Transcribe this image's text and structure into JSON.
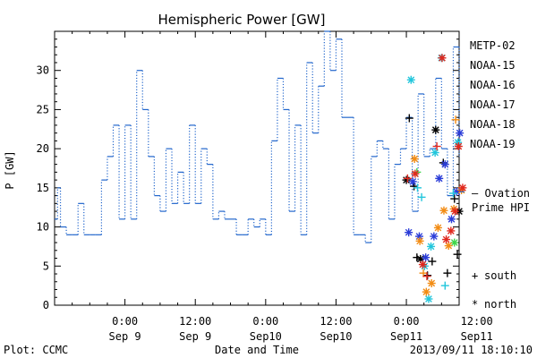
{
  "chart_data": {
    "type": "line",
    "title": "Hemispheric Power [GW]",
    "ylabel": "P [GW]",
    "xlabel": "Date and Time",
    "xlim": [
      -6,
      63
    ],
    "ylim": [
      0,
      35
    ],
    "yticks": [
      0,
      5,
      10,
      15,
      20,
      25,
      30
    ],
    "xticks": [
      {
        "x": 6,
        "time": "0:00",
        "date": "Sep 9"
      },
      {
        "x": 18,
        "time": "12:00",
        "date": "Sep 9"
      },
      {
        "x": 30,
        "time": "0:00",
        "date": "Sep10"
      },
      {
        "x": 42,
        "time": "12:00",
        "date": "Sep10"
      },
      {
        "x": 54,
        "time": "0:00",
        "date": "Sep11"
      },
      {
        "x": 66,
        "time": "12:00",
        "date": "Sep11"
      }
    ],
    "footer_left": "Plot: CCMC",
    "footer_right": "2013/09/11 18:10:10",
    "satellites": [
      {
        "name": "METP-02",
        "color": "#000000"
      },
      {
        "name": "NOAA-15",
        "color": "#2a3cd8"
      },
      {
        "name": "NOAA-16",
        "color": "#22c6dc"
      },
      {
        "name": "NOAA-17",
        "color": "#3ed64a"
      },
      {
        "name": "NOAA-18",
        "color": "#f28c14"
      },
      {
        "name": "NOAA-19",
        "color": "#e0281e"
      }
    ],
    "ovation_label_1": "– Ovation",
    "ovation_label_2": "Prime HPI",
    "ovation_color": "#2266cc",
    "hemisphere_legend": [
      {
        "symbol": "+",
        "label": "south"
      },
      {
        "symbol": "*",
        "label": "north"
      }
    ],
    "ovation_series": {
      "name": "Ovation Prime HPI",
      "x": [
        -6,
        -5.5,
        -5,
        -4,
        -3,
        -2,
        -1,
        0,
        1,
        2,
        3,
        4,
        5,
        6,
        7,
        8,
        9,
        10,
        11,
        12,
        13,
        14,
        15,
        16,
        17,
        18,
        19,
        20,
        21,
        22,
        23,
        24,
        25,
        26,
        27,
        28,
        29,
        30,
        31,
        32,
        33,
        34,
        35,
        36,
        37,
        38,
        39,
        40,
        41,
        42,
        43,
        44,
        45,
        46,
        47,
        48,
        49,
        50,
        51,
        52,
        53,
        54,
        55,
        56,
        57,
        58,
        59,
        60,
        61,
        62,
        62.5,
        63
      ],
      "y": [
        11,
        15,
        10,
        9,
        9,
        13,
        9,
        9,
        9,
        16,
        19,
        23,
        11,
        23,
        11,
        30,
        25,
        19,
        14,
        12,
        20,
        13,
        17,
        13,
        23,
        13,
        20,
        18,
        11,
        12,
        11,
        11,
        9,
        9,
        11,
        10,
        11,
        9,
        21,
        29,
        25,
        12,
        23,
        9,
        31,
        22,
        28,
        36,
        30,
        34,
        24,
        24,
        9,
        9,
        8,
        19,
        21,
        20,
        11,
        18,
        20,
        24,
        12,
        27,
        19,
        20,
        29,
        20,
        14,
        33,
        33,
        19
      ]
    },
    "points": [
      {
        "x": 54.0,
        "y": 16.0,
        "sat": "METP-02",
        "h": "n"
      },
      {
        "x": 54.5,
        "y": 23.9,
        "sat": "METP-02",
        "h": "s"
      },
      {
        "x": 55.3,
        "y": 15.2,
        "sat": "METP-02",
        "h": "s"
      },
      {
        "x": 55.8,
        "y": 6.1,
        "sat": "METP-02",
        "h": "s"
      },
      {
        "x": 56.4,
        "y": 5.9,
        "sat": "METP-02",
        "h": "n"
      },
      {
        "x": 57.6,
        "y": 3.8,
        "sat": "METP-02",
        "h": "s"
      },
      {
        "x": 58.4,
        "y": 5.6,
        "sat": "METP-02",
        "h": "s"
      },
      {
        "x": 59.0,
        "y": 22.4,
        "sat": "METP-02",
        "h": "n"
      },
      {
        "x": 60.3,
        "y": 18.2,
        "sat": "METP-02",
        "h": "s"
      },
      {
        "x": 61.0,
        "y": 4.1,
        "sat": "METP-02",
        "h": "s"
      },
      {
        "x": 62.2,
        "y": 13.6,
        "sat": "METP-02",
        "h": "s"
      },
      {
        "x": 63.0,
        "y": 12.0,
        "sat": "METP-02",
        "h": "n"
      },
      {
        "x": 62.7,
        "y": 6.5,
        "sat": "METP-02",
        "h": "s"
      },
      {
        "x": 54.4,
        "y": 9.3,
        "sat": "NOAA-15",
        "h": "n"
      },
      {
        "x": 55.1,
        "y": 15.8,
        "sat": "NOAA-15",
        "h": "n"
      },
      {
        "x": 56.2,
        "y": 8.8,
        "sat": "NOAA-15",
        "h": "n"
      },
      {
        "x": 57.3,
        "y": 6.1,
        "sat": "NOAA-15",
        "h": "n"
      },
      {
        "x": 58.7,
        "y": 8.8,
        "sat": "NOAA-15",
        "h": "n"
      },
      {
        "x": 59.6,
        "y": 16.2,
        "sat": "NOAA-15",
        "h": "n"
      },
      {
        "x": 60.6,
        "y": 18.0,
        "sat": "NOAA-15",
        "h": "n"
      },
      {
        "x": 61.7,
        "y": 11.0,
        "sat": "NOAA-15",
        "h": "n"
      },
      {
        "x": 62.6,
        "y": 14.5,
        "sat": "NOAA-15",
        "h": "n"
      },
      {
        "x": 63.1,
        "y": 22.0,
        "sat": "NOAA-15",
        "h": "n"
      },
      {
        "x": 54.8,
        "y": 28.8,
        "sat": "NOAA-16",
        "h": "n"
      },
      {
        "x": 55.9,
        "y": 15.0,
        "sat": "NOAA-16",
        "h": "s"
      },
      {
        "x": 56.6,
        "y": 13.8,
        "sat": "NOAA-16",
        "h": "s"
      },
      {
        "x": 57.1,
        "y": 5.0,
        "sat": "NOAA-16",
        "h": "n"
      },
      {
        "x": 57.8,
        "y": 0.8,
        "sat": "NOAA-16",
        "h": "n"
      },
      {
        "x": 58.2,
        "y": 7.5,
        "sat": "NOAA-16",
        "h": "n"
      },
      {
        "x": 58.9,
        "y": 19.5,
        "sat": "NOAA-16",
        "h": "n"
      },
      {
        "x": 60.0,
        "y": 31.6,
        "sat": "NOAA-16",
        "h": "n"
      },
      {
        "x": 60.6,
        "y": 2.5,
        "sat": "NOAA-16",
        "h": "s"
      },
      {
        "x": 62.0,
        "y": 14.3,
        "sat": "NOAA-16",
        "h": "s"
      },
      {
        "x": 62.8,
        "y": 20.8,
        "sat": "NOAA-16",
        "h": "n"
      },
      {
        "x": 55.8,
        "y": 17.0,
        "sat": "NOAA-17",
        "h": "s"
      },
      {
        "x": 62.2,
        "y": 8.0,
        "sat": "NOAA-17",
        "h": "n"
      },
      {
        "x": 55.4,
        "y": 18.7,
        "sat": "NOAA-18",
        "h": "n"
      },
      {
        "x": 56.3,
        "y": 8.2,
        "sat": "NOAA-18",
        "h": "n"
      },
      {
        "x": 56.9,
        "y": 4.1,
        "sat": "NOAA-18",
        "h": "s"
      },
      {
        "x": 57.4,
        "y": 1.7,
        "sat": "NOAA-18",
        "h": "n"
      },
      {
        "x": 58.3,
        "y": 2.8,
        "sat": "NOAA-18",
        "h": "n"
      },
      {
        "x": 59.4,
        "y": 9.9,
        "sat": "NOAA-18",
        "h": "n"
      },
      {
        "x": 60.4,
        "y": 12.1,
        "sat": "NOAA-18",
        "h": "n"
      },
      {
        "x": 61.2,
        "y": 7.6,
        "sat": "NOAA-18",
        "h": "n"
      },
      {
        "x": 62.1,
        "y": 12.3,
        "sat": "NOAA-18",
        "h": "n"
      },
      {
        "x": 62.4,
        "y": 23.7,
        "sat": "NOAA-18",
        "h": "s"
      },
      {
        "x": 63.4,
        "y": 14.7,
        "sat": "NOAA-18",
        "h": "n"
      },
      {
        "x": 54.2,
        "y": 16.2,
        "sat": "NOAA-19",
        "h": "s"
      },
      {
        "x": 55.5,
        "y": 16.8,
        "sat": "NOAA-19",
        "h": "n"
      },
      {
        "x": 56.8,
        "y": 5.2,
        "sat": "NOAA-19",
        "h": "n"
      },
      {
        "x": 57.5,
        "y": 3.7,
        "sat": "NOAA-19",
        "h": "s"
      },
      {
        "x": 59.2,
        "y": 20.3,
        "sat": "NOAA-19",
        "h": "s"
      },
      {
        "x": 60.1,
        "y": 31.6,
        "sat": "NOAA-19",
        "h": "n"
      },
      {
        "x": 60.8,
        "y": 8.4,
        "sat": "NOAA-19",
        "h": "n"
      },
      {
        "x": 61.6,
        "y": 9.5,
        "sat": "NOAA-19",
        "h": "n"
      },
      {
        "x": 62.3,
        "y": 12.0,
        "sat": "NOAA-19",
        "h": "n"
      },
      {
        "x": 62.9,
        "y": 20.3,
        "sat": "NOAA-19",
        "h": "n"
      },
      {
        "x": 63.6,
        "y": 15.0,
        "sat": "NOAA-19",
        "h": "n"
      }
    ]
  }
}
